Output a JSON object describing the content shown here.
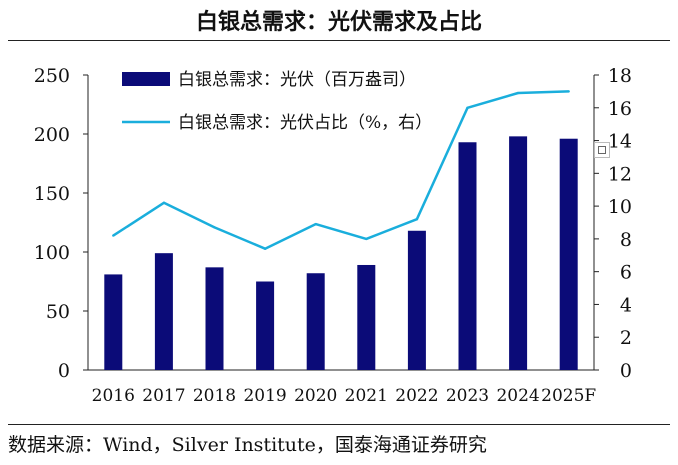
{
  "title": "白银总需求：光伏需求及占比",
  "source": "数据来源：Wind，Silver Institute，国泰海通证券研究",
  "chart_data": {
    "type": "bar",
    "categories": [
      "2016",
      "2017",
      "2018",
      "2019",
      "2020",
      "2021",
      "2022",
      "2023",
      "2024",
      "2025F"
    ],
    "series": [
      {
        "name": "白银总需求：光伏（百万盎司）",
        "type": "bar",
        "axis": "left",
        "color": "#0b0b78",
        "values": [
          81,
          99,
          87,
          75,
          82,
          89,
          118,
          193,
          198,
          196
        ]
      },
      {
        "name": "白银总需求：光伏占比（%，右）",
        "type": "line",
        "axis": "right",
        "color": "#1aaedc",
        "values": [
          8.2,
          10.2,
          8.7,
          7.4,
          8.9,
          8.0,
          9.2,
          16.0,
          16.9,
          17.0
        ]
      }
    ],
    "left_axis": {
      "ylim": [
        0,
        250
      ],
      "ticks": [
        "0",
        "50",
        "100",
        "150",
        "200",
        "250"
      ]
    },
    "right_axis": {
      "ylim": [
        0,
        18
      ],
      "ticks": [
        "0",
        "2",
        "4",
        "6",
        "8",
        "10",
        "12",
        "14",
        "16",
        "18"
      ]
    },
    "legend": [
      "白银总需求：光伏（百万盎司）",
      "白银总需求：光伏占比（%，右）"
    ],
    "legend_position": "top-left",
    "grid": false
  }
}
